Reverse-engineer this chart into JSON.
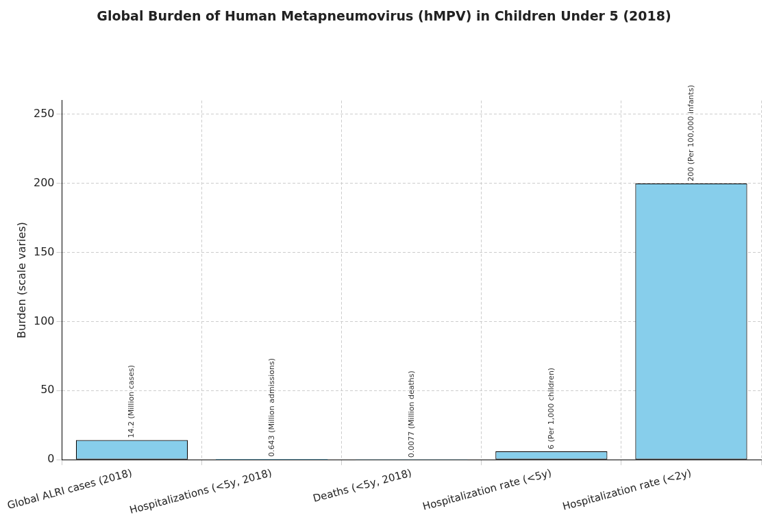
{
  "chart_data": {
    "type": "bar",
    "title": "Global Burden of Human Metapneumovirus (hMPV) in Children Under 5 (2018)",
    "ylabel": "Burden (scale varies)",
    "categories": [
      "Global ALRI cases (2018)",
      "Hospitalizations (<5y, 2018)",
      "Deaths (<5y, 2018)",
      "Hospitalization rate (<5y)",
      "Hospitalization rate (<2y)"
    ],
    "values": [
      14.2,
      0.643,
      0.0077,
      6,
      200
    ],
    "value_labels": [
      "14.2 (Million cases)",
      "0.643 (Million admissions)",
      "0.0077 (Million deaths)",
      "6 (Per 1,000 children)",
      "200 (Per 100,000 infants)"
    ],
    "color": "#87ceeb",
    "ylim": [
      0,
      260
    ],
    "yticks": [
      0,
      50,
      100,
      150,
      200,
      250
    ],
    "grid": true,
    "legend": false
  }
}
